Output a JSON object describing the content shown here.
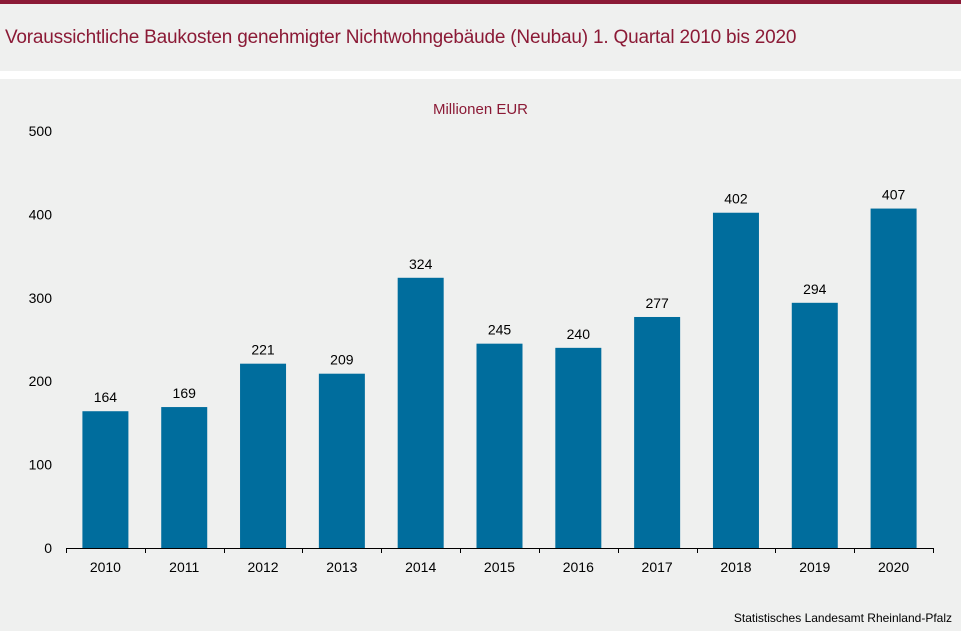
{
  "header": {
    "title": "Voraussichtliche Baukosten genehmigter Nichtwohngebäude (Neubau) 1. Quartal 2010 bis 2020"
  },
  "footer": {
    "source": "Statistisches Landesamt Rheinland-Pfalz"
  },
  "colors": {
    "accent": "#8b1a36",
    "bar": "#006d9d",
    "background": "#eff0ef"
  },
  "chart_data": {
    "type": "bar",
    "title": "Voraussichtliche Baukosten genehmigter Nichtwohngebäude (Neubau) 1. Quartal 2010 bis 2020",
    "unit_label": "Millionen EUR",
    "xlabel": "",
    "ylabel": "",
    "ylim": [
      0,
      500
    ],
    "yticks": [
      0,
      100,
      200,
      300,
      400,
      500
    ],
    "grid": false,
    "legend": "none",
    "categories": [
      "2010",
      "2011",
      "2012",
      "2013",
      "2014",
      "2015",
      "2016",
      "2017",
      "2018",
      "2019",
      "2020"
    ],
    "values": [
      164,
      169,
      221,
      209,
      324,
      245,
      240,
      277,
      402,
      294,
      407
    ]
  }
}
